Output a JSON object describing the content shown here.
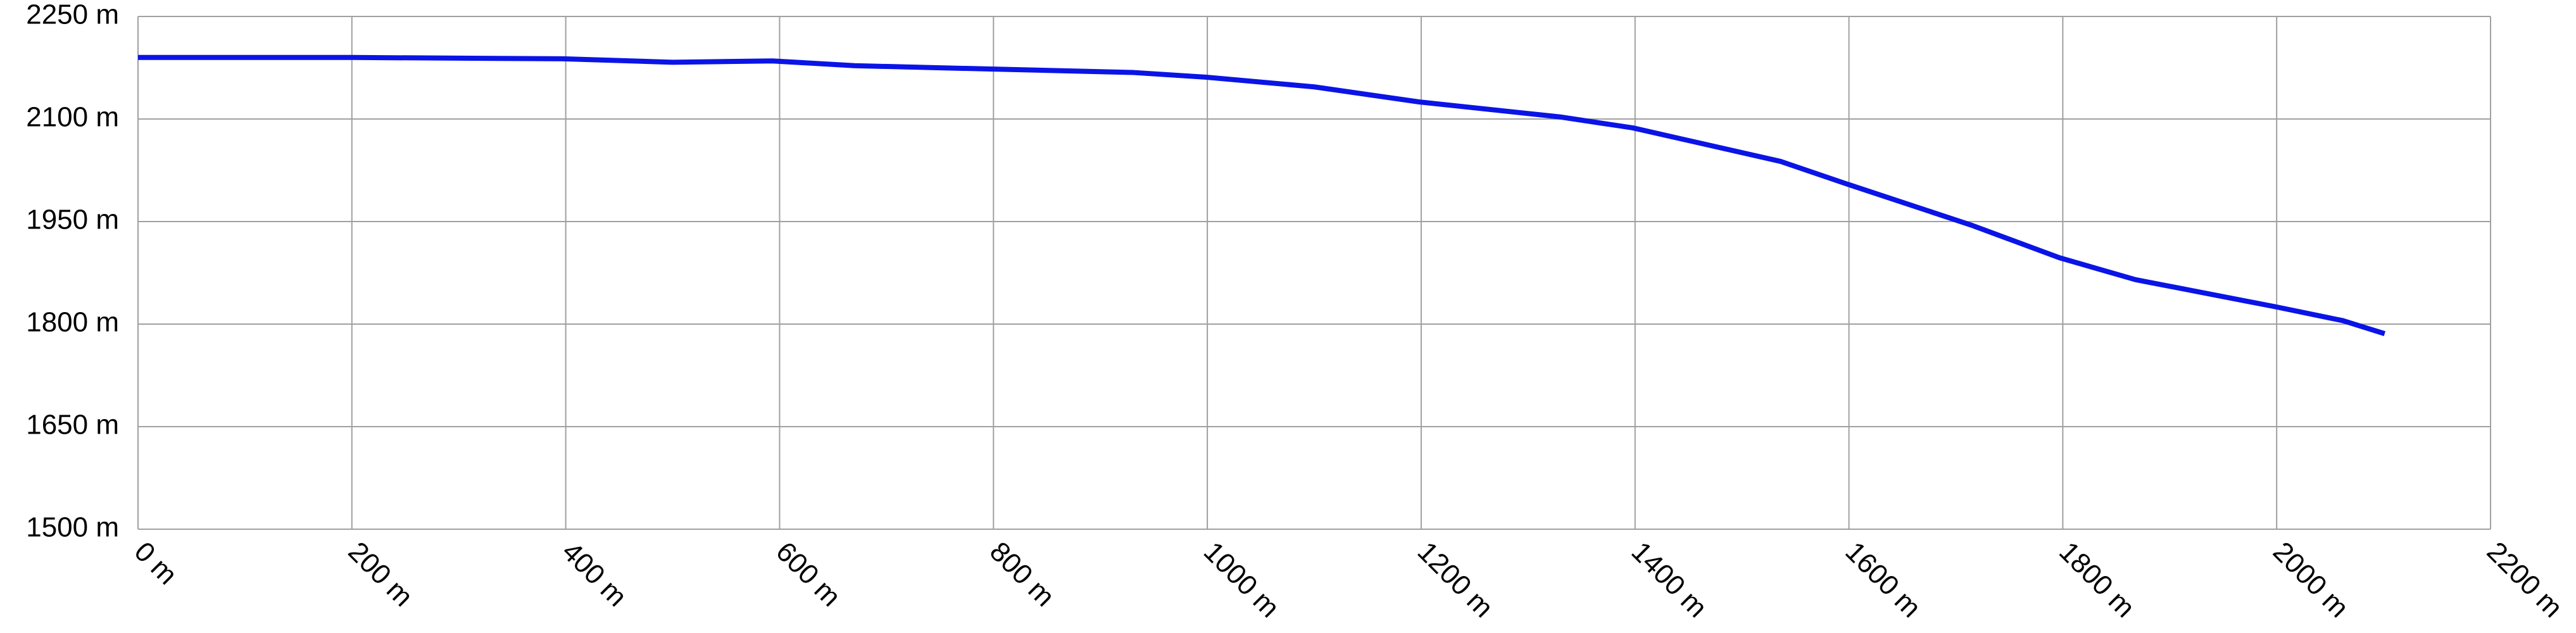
{
  "chart_data": {
    "type": "line",
    "x": [
      0,
      200,
      400,
      500,
      593,
      670,
      800,
      931,
      1000,
      1100,
      1198,
      1330,
      1398,
      1536,
      1598,
      1714,
      1797,
      1868,
      2000,
      2062,
      2101
    ],
    "series": [
      {
        "color": "#0a14e6",
        "values": [
          2190,
          2190,
          2188,
          2183,
          2185,
          2178,
          2173,
          2168,
          2161,
          2147,
          2125,
          2103,
          2087,
          2038,
          2005,
          1945,
          1897,
          1865,
          1825,
          1805,
          1786
        ]
      }
    ],
    "xlim": [
      0,
      2200
    ],
    "ylim": [
      1500,
      2250
    ],
    "xticks": [
      {
        "value": 0,
        "label": "0 m"
      },
      {
        "value": 200,
        "label": "200 m"
      },
      {
        "value": 400,
        "label": "400 m"
      },
      {
        "value": 600,
        "label": "600 m"
      },
      {
        "value": 800,
        "label": "800 m"
      },
      {
        "value": 1000,
        "label": "1000 m"
      },
      {
        "value": 1200,
        "label": "1200 m"
      },
      {
        "value": 1400,
        "label": "1400 m"
      },
      {
        "value": 1600,
        "label": "1600 m"
      },
      {
        "value": 1800,
        "label": "1800 m"
      },
      {
        "value": 2000,
        "label": "2000 m"
      },
      {
        "value": 2200,
        "label": "2200 m"
      }
    ],
    "yticks": [
      {
        "value": 1500,
        "label": "1500 m"
      },
      {
        "value": 1650,
        "label": "1650 m"
      },
      {
        "value": 1800,
        "label": "1800 m"
      },
      {
        "value": 1950,
        "label": "1950 m"
      },
      {
        "value": 2100,
        "label": "2100 m"
      },
      {
        "value": 2250,
        "label": "2250 m"
      }
    ],
    "grid": true
  }
}
